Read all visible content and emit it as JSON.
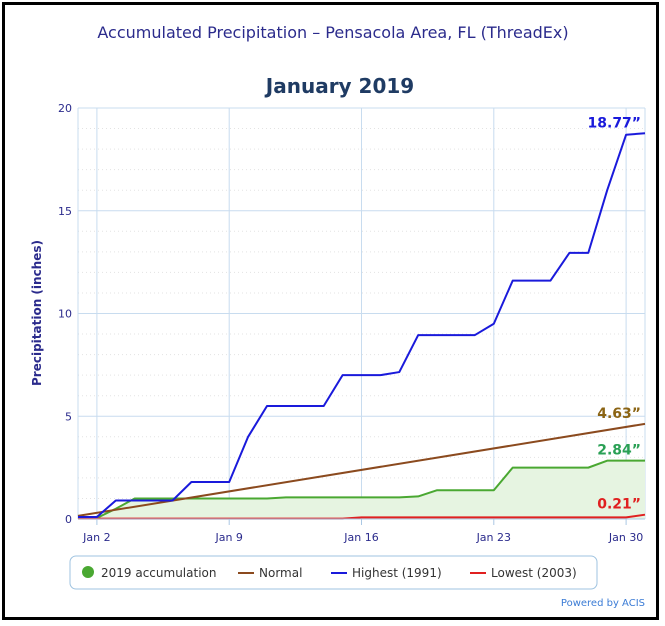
{
  "chart_data": {
    "type": "line",
    "title": "Accumulated Precipitation – Pensacola Area, FL (ThreadEx)",
    "subtitle": "January 2019",
    "ylabel": "Precipitation (inches)",
    "xlabel": "",
    "ylim": [
      0,
      20
    ],
    "xlim": [
      1,
      31
    ],
    "yticks": [
      0,
      5,
      10,
      15,
      20
    ],
    "xticks": [
      {
        "day": 2,
        "label": "Jan 2"
      },
      {
        "day": 9,
        "label": "Jan 9"
      },
      {
        "day": 16,
        "label": "Jan 16"
      },
      {
        "day": 23,
        "label": "Jan 23"
      },
      {
        "day": 30,
        "label": "Jan 30"
      }
    ],
    "grid": true,
    "legend_position": "bottom",
    "series": [
      {
        "name": "2019 accumulation",
        "color": "#4aa832",
        "fill": "#e6f4e1",
        "x": [
          1,
          2,
          3,
          4,
          5,
          6,
          7,
          8,
          9,
          10,
          11,
          12,
          13,
          14,
          15,
          16,
          17,
          18,
          19,
          20,
          21,
          22,
          23,
          24,
          25,
          26,
          27,
          28,
          29,
          30,
          31
        ],
        "values": [
          0.05,
          0.05,
          0.5,
          1.0,
          1.0,
          1.0,
          1.0,
          1.0,
          1.0,
          1.0,
          1.0,
          1.05,
          1.05,
          1.05,
          1.05,
          1.05,
          1.05,
          1.05,
          1.1,
          1.4,
          1.4,
          1.4,
          1.4,
          2.5,
          2.5,
          2.5,
          2.5,
          2.5,
          2.84,
          2.84,
          2.84
        ]
      },
      {
        "name": "Normal",
        "color": "#8b4a1e",
        "x": [
          1,
          31
        ],
        "values": [
          0.15,
          4.63
        ]
      },
      {
        "name": "Highest (1991)",
        "color": "#1a1adb",
        "x": [
          1,
          2,
          3,
          4,
          5,
          6,
          7,
          8,
          9,
          10,
          11,
          12,
          13,
          14,
          15,
          16,
          17,
          18,
          19,
          20,
          21,
          22,
          23,
          24,
          25,
          26,
          27,
          28,
          29,
          30,
          31
        ],
        "values": [
          0.1,
          0.1,
          0.9,
          0.9,
          0.9,
          0.9,
          1.8,
          1.8,
          1.8,
          4.0,
          5.5,
          5.5,
          5.5,
          5.5,
          7.0,
          7.0,
          7.0,
          7.15,
          8.95,
          8.95,
          8.95,
          8.95,
          9.5,
          11.6,
          11.6,
          11.6,
          12.95,
          12.95,
          16.0,
          18.7,
          18.77
        ]
      },
      {
        "name": "Lowest (2003)",
        "color": "#e02020",
        "x": [
          1,
          15,
          16,
          23,
          30,
          31
        ],
        "values": [
          0.02,
          0.02,
          0.08,
          0.08,
          0.08,
          0.21
        ]
      }
    ],
    "end_labels": [
      {
        "text": "18.77”",
        "value": 18.77,
        "color": "#1a1adb"
      },
      {
        "text": "4.63”",
        "value": 4.63,
        "color": "#8b6414"
      },
      {
        "text": "2.84”",
        "value": 2.84,
        "color": "#2aa055"
      },
      {
        "text": "0.21”",
        "value": 0.21,
        "color": "#e02020"
      }
    ],
    "legend": [
      {
        "label": "2019 accumulation",
        "color": "#4aa832",
        "marker": "dot"
      },
      {
        "label": "Normal",
        "color": "#8b4a1e",
        "marker": "line"
      },
      {
        "label": "Highest (1991)",
        "color": "#1a1adb",
        "marker": "line"
      },
      {
        "label": "Lowest (2003)",
        "color": "#e02020",
        "marker": "line"
      }
    ],
    "credit": "Powered by ACIS"
  }
}
